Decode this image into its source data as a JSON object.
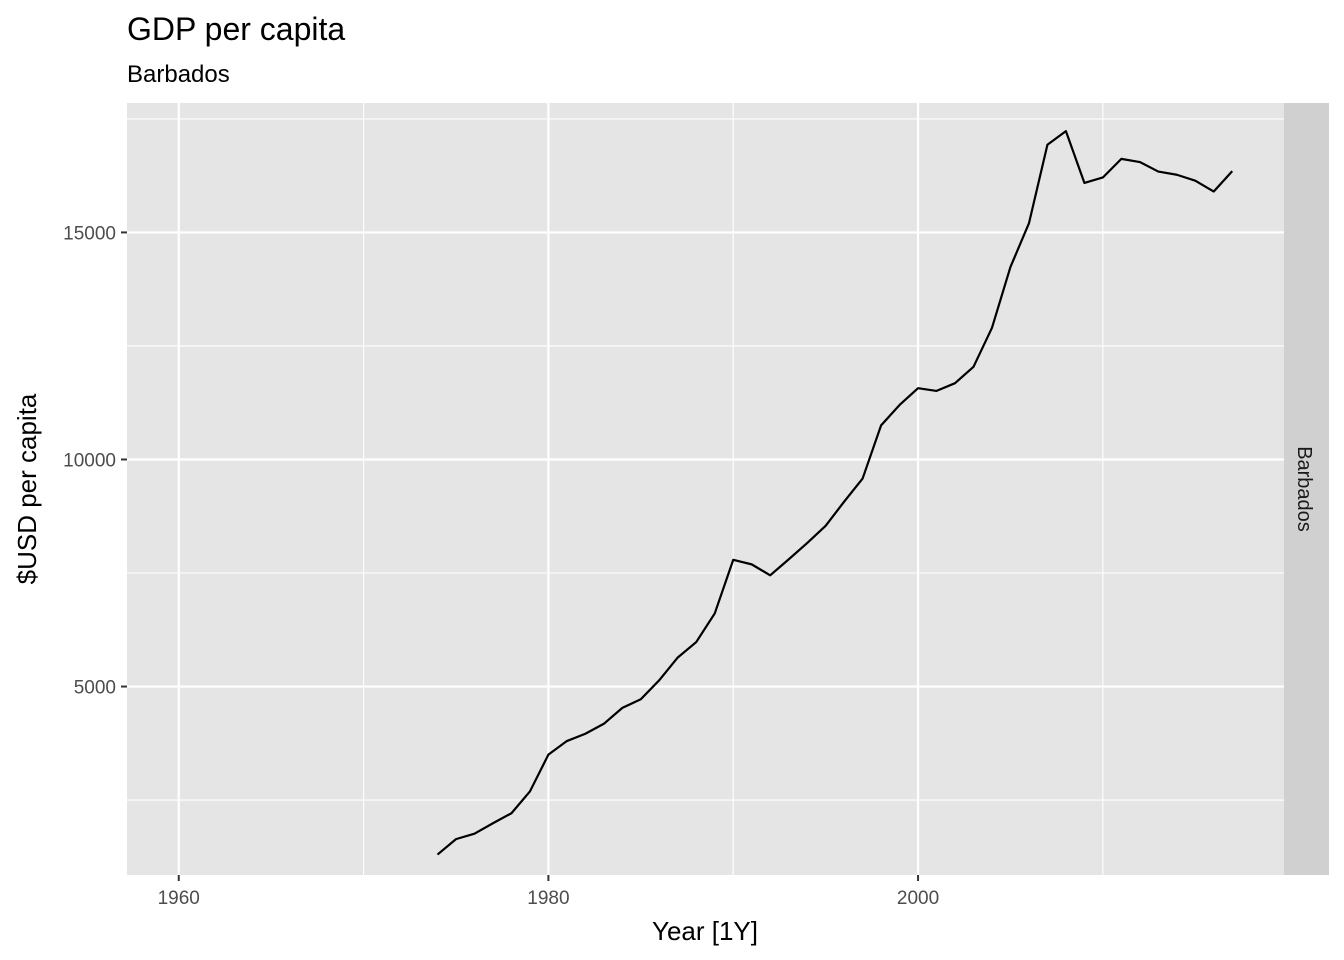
{
  "chart_data": {
    "type": "line",
    "title": "GDP per capita",
    "subtitle": "Barbados",
    "xlabel": "Year [1Y]",
    "ylabel": "$USD per capita",
    "facet_label": "Barbados",
    "xlim": [
      1957.2,
      2019.8
    ],
    "ylim": [
      850,
      17850
    ],
    "x_ticks": [
      1960,
      1980,
      2000
    ],
    "x_minor_ticks": [
      1970,
      1990,
      2010
    ],
    "y_ticks": [
      5000,
      10000,
      15000
    ],
    "y_minor_ticks": [
      2500,
      7500,
      12500,
      17500
    ],
    "grid": true,
    "legend": "none",
    "colors": {
      "panel": "#e5e5e5",
      "grid": "#ffffff",
      "line": "#000000",
      "strip": "#d0d0d0"
    },
    "series": [
      {
        "x": [
          1974,
          1975,
          1976,
          1977,
          1978,
          1979,
          1980,
          1981,
          1982,
          1983,
          1984,
          1985,
          1986,
          1987,
          1988,
          1989,
          1990,
          1991,
          1992,
          1993,
          1994,
          1995,
          1996,
          1997,
          1998,
          1999,
          2000,
          2001,
          2002,
          2003,
          2004,
          2005,
          2006,
          2007,
          2008,
          2009,
          2010,
          2011,
          2012,
          2013,
          2014,
          2015,
          2016,
          2017
        ],
        "values": [
          1300,
          1640,
          1760,
          1990,
          2210,
          2690,
          3500,
          3800,
          3960,
          4180,
          4530,
          4720,
          5140,
          5640,
          5980,
          6610,
          7790,
          7690,
          7450,
          7800,
          8160,
          8540,
          9070,
          9580,
          10750,
          11200,
          11570,
          11510,
          11680,
          12040,
          12900,
          14240,
          15200,
          16930,
          17230,
          16090,
          16210,
          16620,
          16550,
          16340,
          16270,
          16140,
          15900,
          16350
        ]
      }
    ]
  }
}
